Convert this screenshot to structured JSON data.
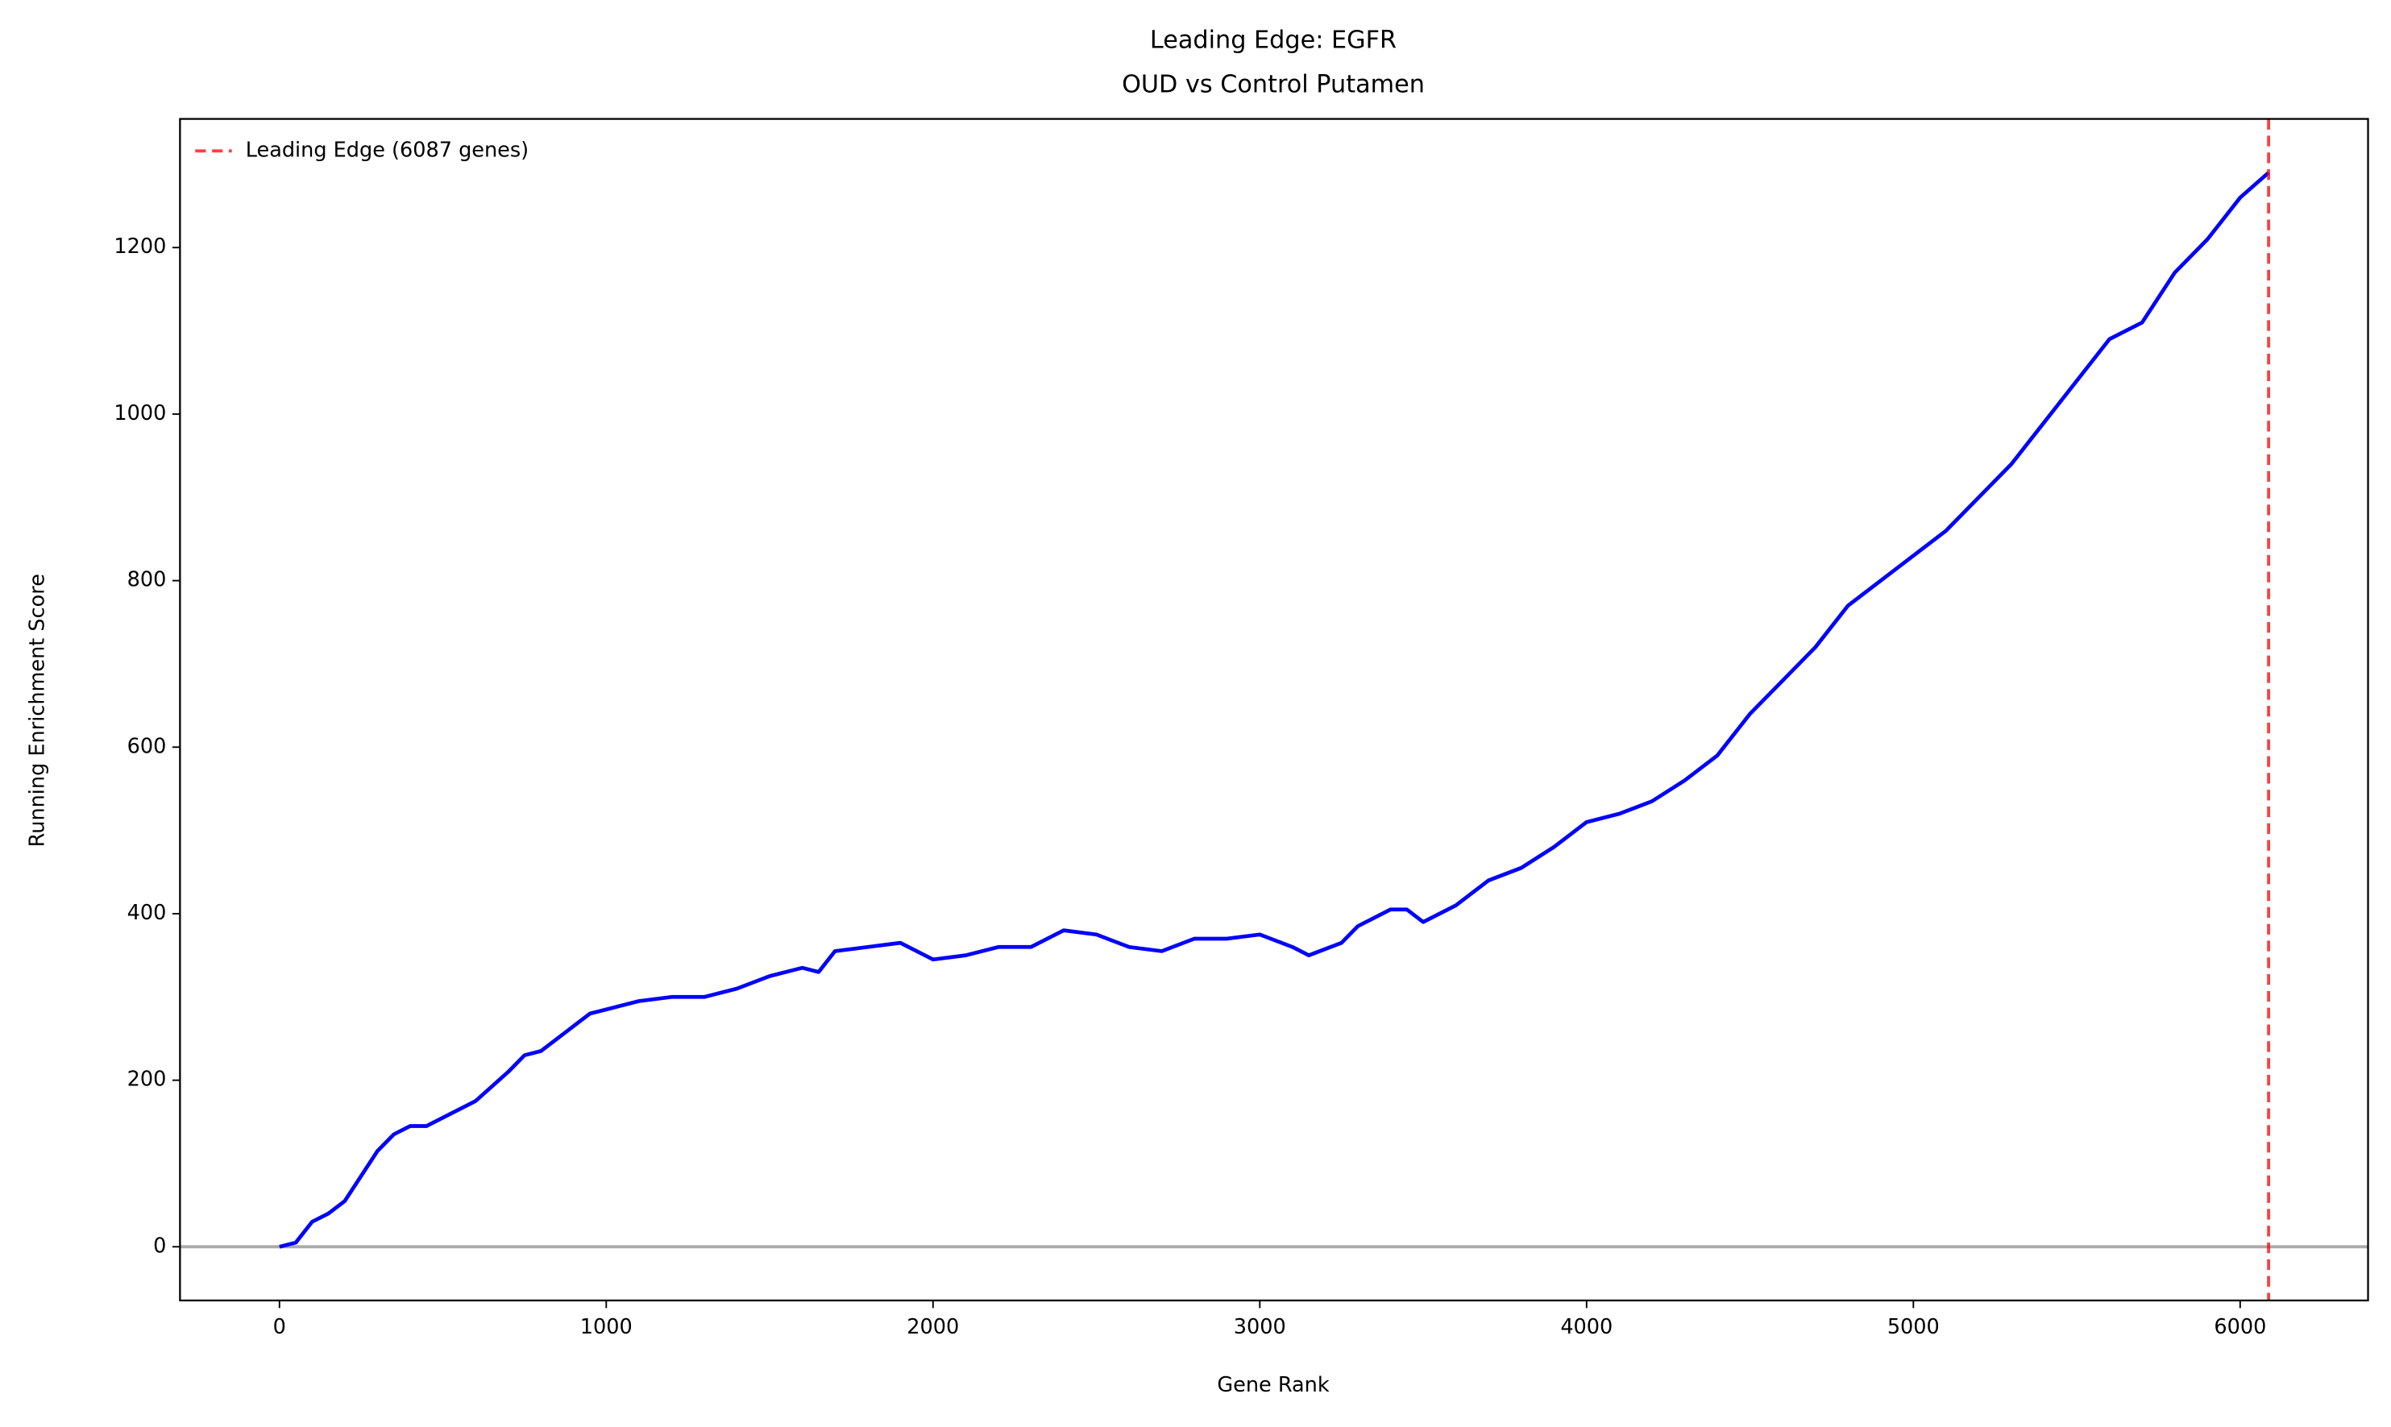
{
  "chart_data": {
    "type": "line",
    "title": "Leading Edge: EGFR",
    "subtitle": "OUD vs Control Putamen",
    "xlabel": "Gene Rank",
    "ylabel": "Running Enrichment Score",
    "x": [
      0,
      50,
      100,
      150,
      200,
      250,
      300,
      350,
      400,
      450,
      500,
      600,
      700,
      750,
      800,
      900,
      950,
      1000,
      1100,
      1200,
      1300,
      1400,
      1500,
      1600,
      1650,
      1700,
      1800,
      1900,
      2000,
      2100,
      2200,
      2300,
      2400,
      2500,
      2600,
      2700,
      2800,
      2900,
      3000,
      3100,
      3150,
      3250,
      3300,
      3400,
      3450,
      3500,
      3600,
      3700,
      3800,
      3900,
      4000,
      4100,
      4200,
      4300,
      4400,
      4500,
      4600,
      4700,
      4800,
      4900,
      5000,
      5100,
      5200,
      5300,
      5400,
      5500,
      5600,
      5700,
      5800,
      5900,
      6000,
      6087
    ],
    "series": [
      {
        "color": "#0000ff",
        "values": [
          0,
          5,
          30,
          40,
          55,
          85,
          115,
          135,
          145,
          145,
          155,
          175,
          210,
          230,
          235,
          265,
          280,
          285,
          295,
          300,
          300,
          310,
          325,
          335,
          330,
          355,
          360,
          365,
          345,
          350,
          360,
          360,
          380,
          375,
          360,
          355,
          370,
          370,
          375,
          360,
          350,
          365,
          385,
          405,
          405,
          390,
          410,
          440,
          455,
          480,
          510,
          520,
          535,
          560,
          590,
          640,
          680,
          720,
          770,
          800,
          830,
          860,
          900,
          940,
          990,
          1040,
          1090,
          1110,
          1170,
          1210,
          1260,
          1290
        ]
      }
    ],
    "vlines": [
      {
        "x": 6087,
        "label": "Leading Edge (6087 genes)",
        "color": "#ff0000"
      }
    ],
    "hlines": [
      {
        "y": 0,
        "color": "#aaaaaa"
      }
    ],
    "legend": "upper left",
    "xlim": [
      -304.35,
      6391.35
    ],
    "ylim": [
      -64.5,
      1354.5
    ],
    "xticks": [
      0,
      1000,
      2000,
      3000,
      4000,
      5000,
      6000
    ],
    "yticks": [
      0,
      200,
      400,
      600,
      800,
      1000,
      1200
    ]
  }
}
